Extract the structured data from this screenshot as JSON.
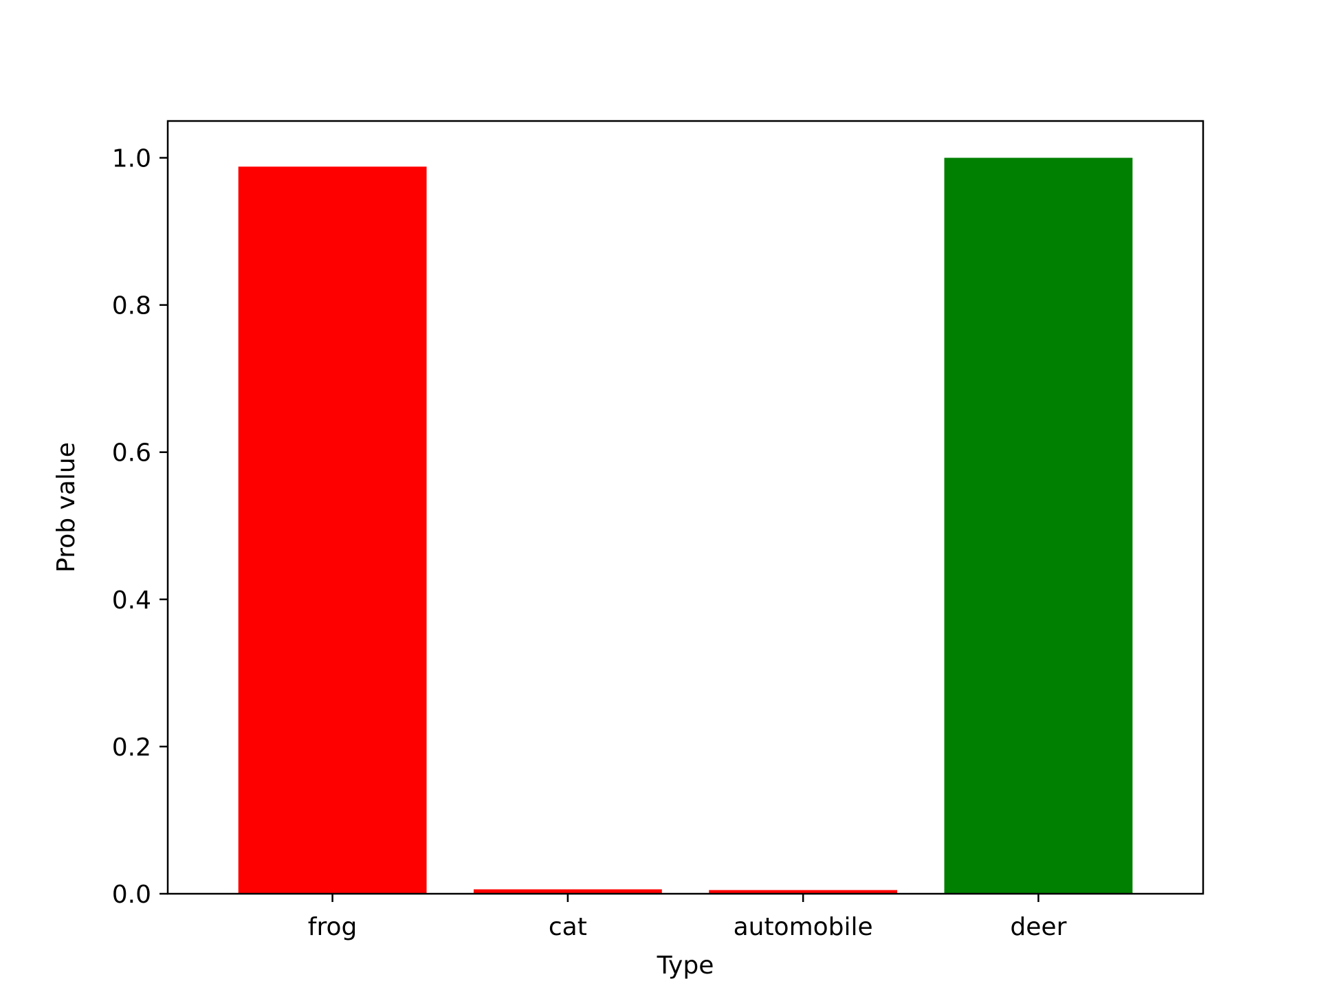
{
  "chart_data": {
    "type": "bar",
    "categories": [
      "frog",
      "cat",
      "automobile",
      "deer"
    ],
    "values": [
      0.988,
      0.006,
      0.005,
      1.0
    ],
    "colors": [
      "#ff0000",
      "#ff0000",
      "#ff0000",
      "#008000"
    ],
    "title": "",
    "xlabel": "Type",
    "ylabel": "Prob value",
    "ylim": [
      0,
      1.05
    ],
    "yticks": [
      0.0,
      0.2,
      0.4,
      0.6,
      0.8,
      1.0
    ],
    "ytick_labels": [
      "0.0",
      "0.2",
      "0.4",
      "0.6",
      "0.8",
      "1.0"
    ],
    "grid": false,
    "legend": "none"
  }
}
